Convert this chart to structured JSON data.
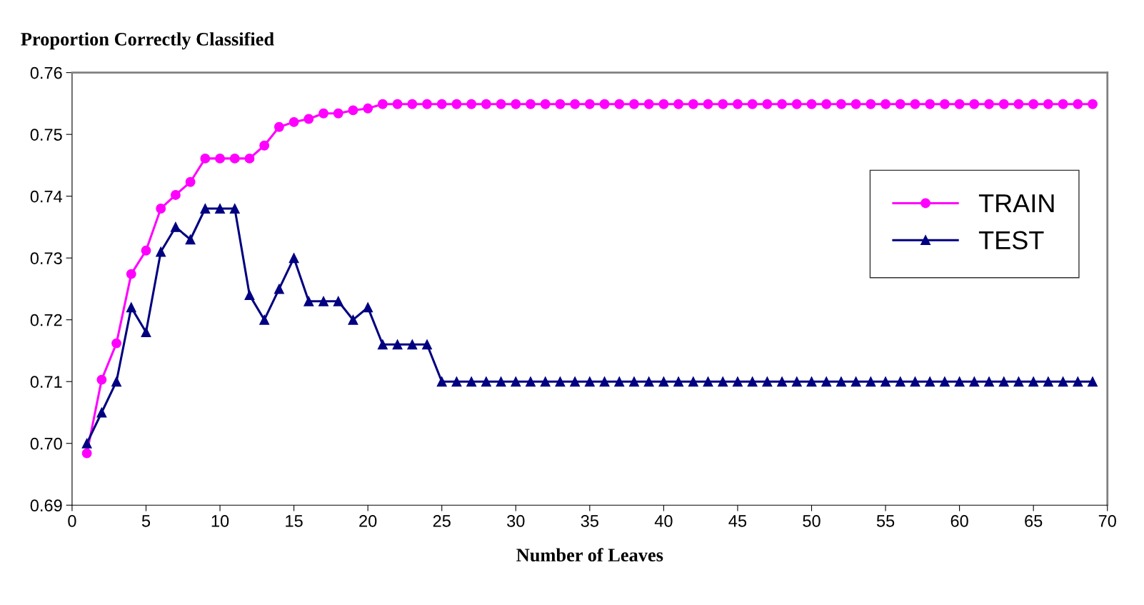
{
  "chart_data": {
    "type": "line",
    "title": "Proportion Correctly Classified",
    "xlabel": "Number of Leaves",
    "x": [
      1,
      2,
      3,
      4,
      5,
      6,
      7,
      8,
      9,
      10,
      11,
      12,
      13,
      14,
      15,
      16,
      17,
      18,
      19,
      20,
      21,
      22,
      23,
      24,
      25,
      26,
      27,
      28,
      29,
      30,
      31,
      32,
      33,
      34,
      35,
      36,
      37,
      38,
      39,
      40,
      41,
      42,
      43,
      44,
      45,
      46,
      47,
      48,
      49,
      50,
      51,
      52,
      53,
      54,
      55,
      56,
      57,
      58,
      59,
      60,
      61,
      62,
      63,
      64,
      65,
      66,
      67,
      68,
      69
    ],
    "series": [
      {
        "name": "TRAIN",
        "color": "#ff00ff",
        "marker": "circle",
        "values": [
          0.6984,
          0.7103,
          0.7162,
          0.7274,
          0.7312,
          0.738,
          0.7402,
          0.7423,
          0.7461,
          0.7461,
          0.7461,
          0.7461,
          0.7482,
          0.7512,
          0.752,
          0.7525,
          0.7534,
          0.7534,
          0.7539,
          0.7542,
          0.7549,
          0.7549,
          0.7549,
          0.7549,
          0.7549,
          0.7549,
          0.7549,
          0.7549,
          0.7549,
          0.7549,
          0.7549,
          0.7549,
          0.7549,
          0.7549,
          0.7549,
          0.7549,
          0.7549,
          0.7549,
          0.7549,
          0.7549,
          0.7549,
          0.7549,
          0.7549,
          0.7549,
          0.7549,
          0.7549,
          0.7549,
          0.7549,
          0.7549,
          0.7549,
          0.7549,
          0.7549,
          0.7549,
          0.7549,
          0.7549,
          0.7549,
          0.7549,
          0.7549,
          0.7549,
          0.7549,
          0.7549,
          0.7549,
          0.7549,
          0.7549,
          0.7549,
          0.7549,
          0.7549,
          0.7549,
          0.7549
        ]
      },
      {
        "name": "TEST",
        "color": "#000080",
        "marker": "triangle",
        "values": [
          0.7,
          0.705,
          0.71,
          0.722,
          0.718,
          0.731,
          0.735,
          0.733,
          0.738,
          0.738,
          0.738,
          0.724,
          0.72,
          0.725,
          0.73,
          0.723,
          0.723,
          0.723,
          0.72,
          0.722,
          0.716,
          0.716,
          0.716,
          0.716,
          0.71,
          0.71,
          0.71,
          0.71,
          0.71,
          0.71,
          0.71,
          0.71,
          0.71,
          0.71,
          0.71,
          0.71,
          0.71,
          0.71,
          0.71,
          0.71,
          0.71,
          0.71,
          0.71,
          0.71,
          0.71,
          0.71,
          0.71,
          0.71,
          0.71,
          0.71,
          0.71,
          0.71,
          0.71,
          0.71,
          0.71,
          0.71,
          0.71,
          0.71,
          0.71,
          0.71,
          0.71,
          0.71,
          0.71,
          0.71,
          0.71,
          0.71,
          0.71,
          0.71,
          0.71
        ]
      }
    ],
    "xlim": [
      0,
      70
    ],
    "xticks": [
      0,
      5,
      10,
      15,
      20,
      25,
      30,
      35,
      40,
      45,
      50,
      55,
      60,
      65,
      70
    ],
    "ylim": [
      0.69,
      0.76
    ],
    "yticks": [
      {
        "value": 0.69,
        "label": "0.69"
      },
      {
        "value": 0.7,
        "label": "0.70"
      },
      {
        "value": 0.71,
        "label": "0.71"
      },
      {
        "value": 0.72,
        "label": "0.72"
      },
      {
        "value": 0.73,
        "label": "0.73"
      },
      {
        "value": 0.74,
        "label": "0.74"
      },
      {
        "value": 0.75,
        "label": "0.75"
      },
      {
        "value": 0.76,
        "label": "0.76"
      }
    ],
    "grid": false,
    "legend": "right",
    "line_style": "solid"
  }
}
